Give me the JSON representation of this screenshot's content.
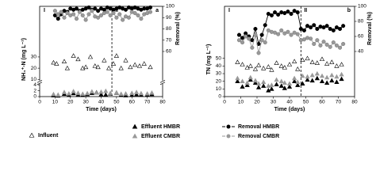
{
  "chart_data": [
    {
      "type": "scatter",
      "panel_label": "a",
      "periods": [
        "I",
        "II"
      ],
      "phase_boundary": 47,
      "x_label": "Time (days)",
      "y_label": "NH₄⁺-N (mg L⁻¹)",
      "y2_label": "Removal (%)",
      "xlim": [
        0,
        80
      ],
      "xticks": [
        0,
        10,
        20,
        30,
        40,
        50,
        60,
        70,
        80
      ],
      "ylim": [
        0,
        75
      ],
      "axis_break": [
        4,
        10
      ],
      "yticks": [
        0,
        2,
        4,
        10,
        20,
        30
      ],
      "y2lim": [
        20,
        100
      ],
      "y2ticks": [
        60,
        70,
        80,
        90,
        100
      ],
      "series": [
        {
          "name": "Influent",
          "marker": "triangle-open",
          "color": "#000000",
          "axis": "y",
          "x": [
            9,
            11,
            16,
            18,
            22,
            25,
            28,
            30,
            33,
            36,
            38,
            42,
            45,
            48,
            50,
            53,
            56,
            59,
            62,
            65,
            68,
            72
          ],
          "values": [
            25,
            24,
            26,
            20,
            31,
            28,
            20,
            21,
            30,
            22,
            21,
            27,
            20,
            24,
            31,
            20,
            27,
            21,
            23,
            22,
            24,
            21
          ]
        },
        {
          "name": "Effluent HMBR",
          "marker": "triangle",
          "color": "#000000",
          "axis": "y",
          "x": [
            9,
            12,
            16,
            19,
            22,
            25,
            28,
            31,
            34,
            37,
            40,
            43,
            46,
            50,
            53,
            56,
            60,
            63,
            66,
            70,
            73
          ],
          "values": [
            0.4,
            0.3,
            0.9,
            0.5,
            1.1,
            0.6,
            0.5,
            0.8,
            1.2,
            1.4,
            0.7,
            0.6,
            1.0,
            1.3,
            0.5,
            0.4,
            0.5,
            0.7,
            0.6,
            0.6,
            0.8
          ]
        },
        {
          "name": "Effluent CMBR",
          "marker": "triangle",
          "color": "#999999",
          "axis": "y",
          "x": [
            9,
            12,
            16,
            19,
            22,
            25,
            28,
            31,
            34,
            37,
            40,
            43,
            46,
            50,
            53,
            56,
            60,
            63,
            66,
            70,
            73
          ],
          "values": [
            0.8,
            0.6,
            1.5,
            1.0,
            1.8,
            1.2,
            0.9,
            1.1,
            1.7,
            1.3,
            1.6,
            1.9,
            1.2,
            1.4,
            0.9,
            1.0,
            1.2,
            1.5,
            1.1,
            1.0,
            1.3
          ]
        },
        {
          "name": "Removal HMBR",
          "marker": "circle",
          "color": "#000000",
          "axis": "y2",
          "line": true,
          "x": [
            10,
            12,
            14,
            16,
            18,
            20,
            22,
            24,
            26,
            28,
            30,
            32,
            34,
            36,
            38,
            40,
            42,
            44,
            46,
            48,
            50,
            52,
            54,
            56,
            58,
            60,
            62,
            64,
            66,
            68,
            70,
            72
          ],
          "values": [
            92,
            89,
            93,
            96,
            95,
            98,
            97,
            98,
            96,
            97,
            98,
            99,
            97,
            98,
            96,
            98,
            97,
            99,
            98,
            97,
            98,
            99,
            98,
            97,
            99,
            98,
            99,
            98,
            97,
            98,
            98,
            99
          ]
        },
        {
          "name": "Removal CMBR",
          "marker": "circle",
          "color": "#999999",
          "axis": "y2",
          "line": true,
          "x": [
            10,
            12,
            14,
            16,
            18,
            20,
            22,
            24,
            26,
            28,
            30,
            32,
            34,
            36,
            38,
            40,
            42,
            44,
            46,
            48,
            50,
            52,
            54,
            56,
            58,
            60,
            62,
            64,
            66,
            68,
            70,
            72
          ],
          "values": [
            96,
            93,
            95,
            90,
            94,
            92,
            93,
            89,
            95,
            92,
            88,
            93,
            96,
            91,
            90,
            92,
            94,
            95,
            92,
            94,
            90,
            93,
            88,
            91,
            90,
            95,
            94,
            92,
            89,
            93,
            94,
            95
          ]
        }
      ]
    },
    {
      "type": "scatter",
      "panel_label": "b",
      "periods": [
        "I",
        "II"
      ],
      "phase_boundary": 47,
      "x_label": "Time (days)",
      "y_label": "TN (mg L⁻¹)",
      "y2_label": "Removal (%)",
      "xlim": [
        0,
        80
      ],
      "xticks": [
        0,
        10,
        20,
        30,
        40,
        50,
        60,
        70,
        80
      ],
      "ylim": [
        0,
        118
      ],
      "yticks": [
        0,
        10,
        20,
        30,
        40,
        50
      ],
      "y2lim": [
        -20,
        100
      ],
      "y2ticks": [
        40,
        60,
        80,
        100
      ],
      "series": [
        {
          "marker": "triangle-open",
          "color": "#000000",
          "axis": "y",
          "x": [
            8,
            11,
            14,
            16,
            19,
            21,
            24,
            27,
            29,
            32,
            35,
            37,
            40,
            43,
            45,
            48,
            51,
            54,
            57,
            60,
            63,
            66,
            69,
            72
          ],
          "values": [
            45,
            42,
            38,
            40,
            36,
            41,
            37,
            39,
            35,
            44,
            40,
            38,
            42,
            46,
            36,
            48,
            50,
            45,
            44,
            49,
            43,
            45,
            40,
            42
          ]
        },
        {
          "marker": "triangle",
          "color": "#000000",
          "axis": "y",
          "x": [
            8,
            11,
            14,
            16,
            19,
            21,
            24,
            27,
            29,
            32,
            35,
            37,
            40,
            43,
            45,
            48,
            51,
            54,
            57,
            60,
            63,
            66,
            69,
            72
          ],
          "values": [
            20,
            13,
            15,
            22,
            18,
            12,
            14,
            8,
            10,
            16,
            14,
            11,
            13,
            20,
            15,
            17,
            22,
            21,
            24,
            20,
            18,
            21,
            19,
            23
          ]
        },
        {
          "marker": "triangle",
          "color": "#999999",
          "axis": "y",
          "x": [
            8,
            11,
            14,
            16,
            19,
            21,
            24,
            27,
            29,
            32,
            35,
            37,
            40,
            43,
            45,
            48,
            51,
            54,
            57,
            60,
            63,
            66,
            69,
            72
          ],
          "values": [
            24,
            20,
            18,
            25,
            21,
            17,
            19,
            14,
            15,
            22,
            20,
            18,
            17,
            24,
            19,
            27,
            26,
            28,
            30,
            27,
            25,
            28,
            26,
            29
          ]
        },
        {
          "marker": "circle",
          "color": "#000000",
          "axis": "y2",
          "line": true,
          "x": [
            9,
            11,
            13,
            15,
            17,
            19,
            21,
            23,
            25,
            27,
            29,
            31,
            33,
            35,
            37,
            39,
            41,
            43,
            45,
            47,
            49,
            51,
            53,
            55,
            57,
            59,
            61,
            63,
            65,
            67,
            69,
            71,
            73
          ],
          "values": [
            62,
            58,
            64,
            60,
            55,
            70,
            50,
            62,
            75,
            90,
            88,
            92,
            89,
            92,
            91,
            93,
            90,
            94,
            92,
            70,
            68,
            74,
            72,
            75,
            70,
            73,
            72,
            74,
            70,
            68,
            72,
            70,
            74
          ]
        },
        {
          "marker": "circle",
          "color": "#999999",
          "axis": "y2",
          "line": true,
          "x": [
            9,
            11,
            13,
            15,
            17,
            19,
            21,
            23,
            25,
            27,
            29,
            31,
            33,
            35,
            37,
            39,
            41,
            43,
            45,
            47,
            49,
            51,
            53,
            55,
            57,
            59,
            61,
            63,
            65,
            67,
            69,
            71,
            73
          ],
          "values": [
            55,
            52,
            60,
            57,
            45,
            62,
            38,
            55,
            52,
            68,
            66,
            65,
            63,
            68,
            64,
            66,
            62,
            65,
            63,
            55,
            56,
            58,
            57,
            50,
            55,
            48,
            53,
            49,
            46,
            52,
            48,
            45,
            50
          ]
        }
      ]
    }
  ]
}
